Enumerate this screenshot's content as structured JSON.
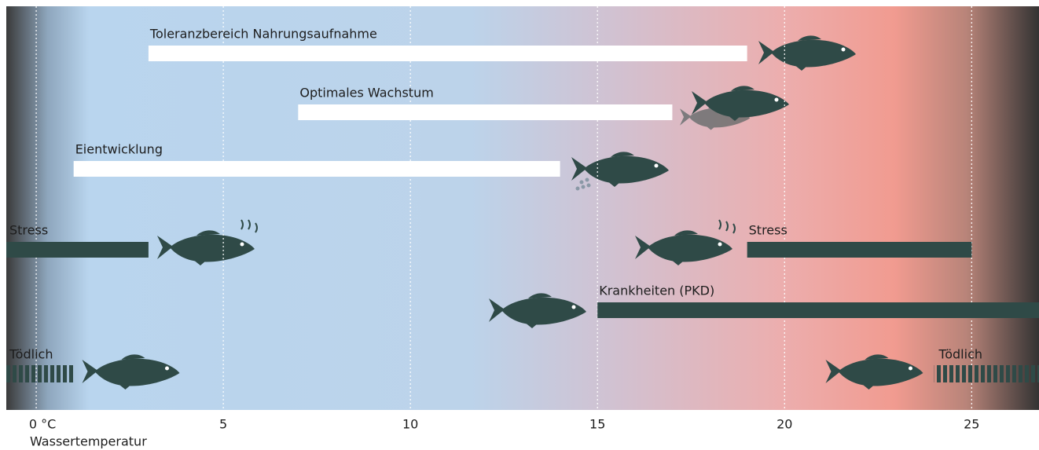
{
  "chart_data": {
    "type": "range-bar",
    "x_label": "Wassertemperatur",
    "xlim": [
      -0.8,
      26.8
    ],
    "xticks": [
      {
        "value": 0,
        "label": "0 °C"
      },
      5,
      10,
      15,
      20,
      25
    ],
    "grid": true,
    "series": [
      {
        "name": "Toleranzbereich Nahrungsaufnahme",
        "color": "#ffffff",
        "start": 3,
        "end": 19
      },
      {
        "name": "Optimales Wachstum",
        "color": "#ffffff",
        "start": 7,
        "end": 17
      },
      {
        "name": "Eientwicklung",
        "color": "#ffffff",
        "start": 1,
        "end": 14
      },
      {
        "name": "Stress",
        "color": "#2f4a47",
        "start": -0.8,
        "end": 3
      },
      {
        "name": "Stress",
        "color": "#2f4a47",
        "start": 19,
        "end": 25
      },
      {
        "name": "Krankheiten (PKD)",
        "color": "#2f4a47",
        "start": 15,
        "end": 26.8
      },
      {
        "name": "Tödlich",
        "color": "#2f4a47",
        "start": -0.8,
        "end": 1,
        "pattern": "striped"
      },
      {
        "name": "Tödlich",
        "color": "#2f4a47",
        "start": 24,
        "end": 26.8,
        "pattern": "striped"
      }
    ]
  }
}
